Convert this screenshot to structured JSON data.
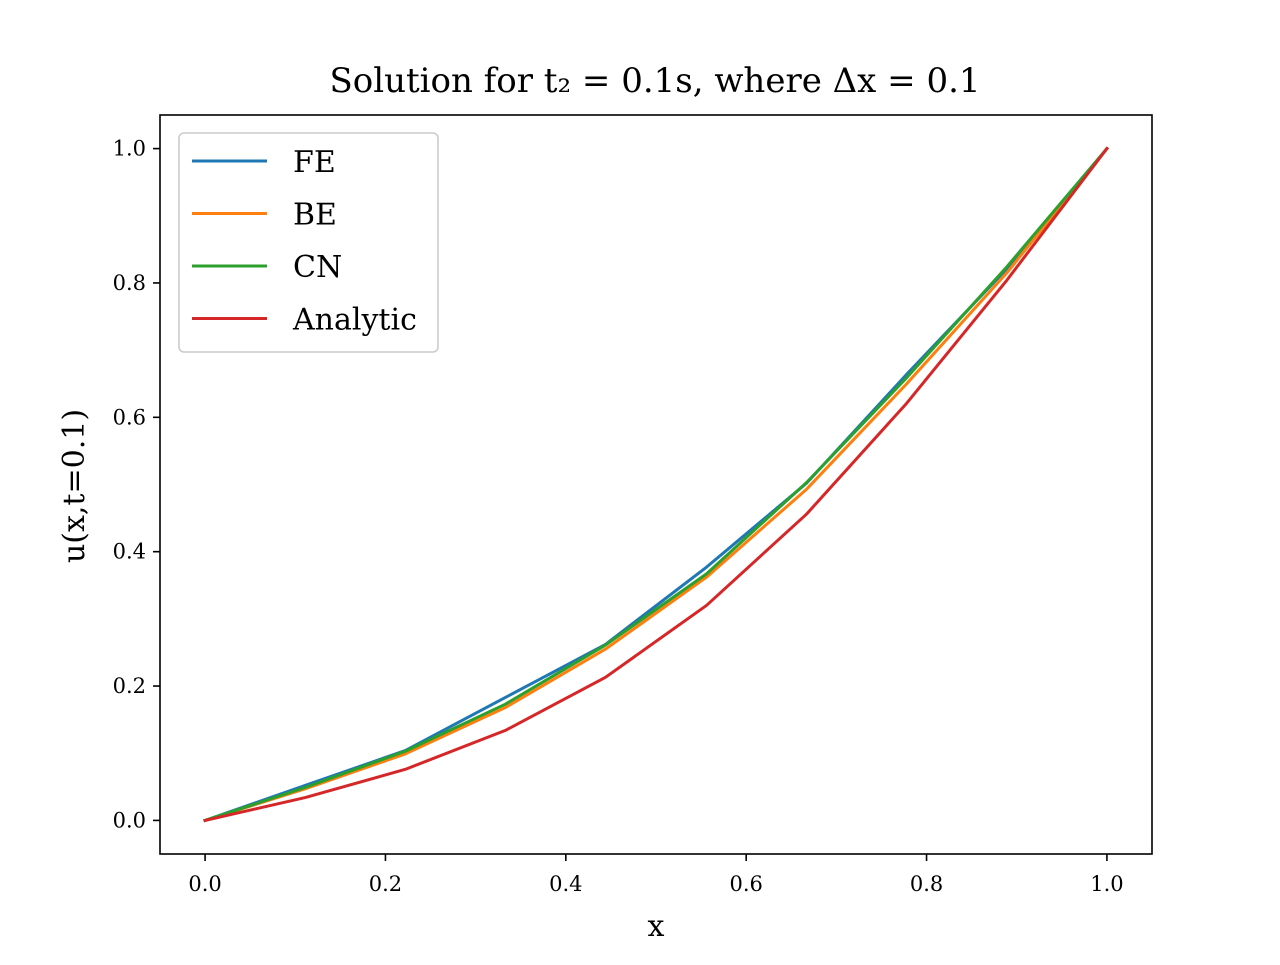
{
  "chart_data": {
    "type": "line",
    "title": "Solution for t₂ = 0.1s, where Δx = 0.1",
    "xlabel": "x",
    "ylabel": "u(x,t=0.1)",
    "xlim": [
      -0.05,
      1.05
    ],
    "ylim": [
      -0.05,
      1.05
    ],
    "xticks": [
      "0.0",
      "0.2",
      "0.4",
      "0.6",
      "0.8",
      "1.0"
    ],
    "yticks": [
      "0.0",
      "0.2",
      "0.4",
      "0.6",
      "0.8",
      "1.0"
    ],
    "grid": false,
    "legend_position": "upper-left",
    "x": [
      0.0,
      0.111,
      0.222,
      0.333,
      0.444,
      0.556,
      0.667,
      0.778,
      0.889,
      1.0
    ],
    "series": [
      {
        "name": "FE",
        "color": "#1f77b4",
        "values": [
          0.0,
          0.052,
          0.104,
          0.183,
          0.262,
          0.377,
          0.502,
          0.664,
          0.821,
          1.0
        ]
      },
      {
        "name": "BE",
        "color": "#ff7f0e",
        "values": [
          0.0,
          0.047,
          0.099,
          0.168,
          0.255,
          0.362,
          0.493,
          0.65,
          0.815,
          1.0
        ]
      },
      {
        "name": "CN",
        "color": "#2ca02c",
        "values": [
          0.0,
          0.049,
          0.103,
          0.173,
          0.261,
          0.367,
          0.503,
          0.659,
          0.824,
          1.0
        ]
      },
      {
        "name": "Analytic",
        "color": "#d62728",
        "values": [
          0.0,
          0.034,
          0.076,
          0.134,
          0.213,
          0.32,
          0.456,
          0.621,
          0.804,
          1.0
        ]
      }
    ]
  }
}
